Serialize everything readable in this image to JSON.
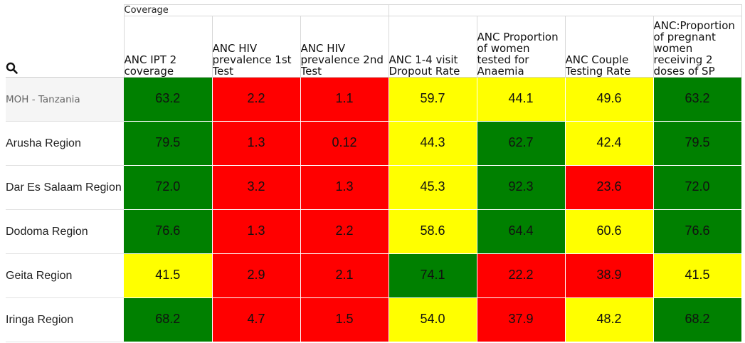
{
  "colors": {
    "green": "#008000",
    "red": "#ff0000",
    "yellow": "#ffff00"
  },
  "header": {
    "group_label": "Coverage",
    "search_icon": "search-icon",
    "columns": [
      "ANC IPT 2 coverage",
      "ANC HIV prevalence 1st Test",
      "ANC HIV prevalence 2nd Test",
      "ANC 1-4 visit Dropout Rate",
      "ANC Proportion of women tested for Anaemia",
      "ANC Couple Testing Rate",
      "ANC:Proportion of pregnant women receiving 2 doses of SP"
    ]
  },
  "rows": [
    {
      "label": "MOH - Tanzania",
      "values": [
        "63.2",
        "2.2",
        "1.1",
        "59.7",
        "44.1",
        "49.6",
        "63.2"
      ],
      "status": [
        "green",
        "red",
        "red",
        "yellow",
        "yellow",
        "yellow",
        "green"
      ]
    },
    {
      "label": "Arusha Region",
      "values": [
        "79.5",
        "1.3",
        "0.12",
        "44.3",
        "62.7",
        "42.4",
        "79.5"
      ],
      "status": [
        "green",
        "red",
        "red",
        "yellow",
        "green",
        "yellow",
        "green"
      ]
    },
    {
      "label": "Dar Es Salaam Region",
      "values": [
        "72.0",
        "3.2",
        "1.3",
        "45.3",
        "92.3",
        "23.6",
        "72.0"
      ],
      "status": [
        "green",
        "red",
        "red",
        "yellow",
        "green",
        "red",
        "green"
      ]
    },
    {
      "label": "Dodoma Region",
      "values": [
        "76.6",
        "1.3",
        "2.2",
        "58.6",
        "64.4",
        "60.6",
        "76.6"
      ],
      "status": [
        "green",
        "red",
        "red",
        "yellow",
        "green",
        "yellow",
        "green"
      ]
    },
    {
      "label": "Geita Region",
      "values": [
        "41.5",
        "2.9",
        "2.1",
        "74.1",
        "22.2",
        "38.9",
        "41.5"
      ],
      "status": [
        "yellow",
        "red",
        "red",
        "green",
        "red",
        "red",
        "yellow"
      ]
    },
    {
      "label": "Iringa Region",
      "values": [
        "68.2",
        "4.7",
        "1.5",
        "54.0",
        "37.9",
        "48.2",
        "68.2"
      ],
      "status": [
        "green",
        "red",
        "red",
        "yellow",
        "red",
        "yellow",
        "green"
      ]
    }
  ]
}
